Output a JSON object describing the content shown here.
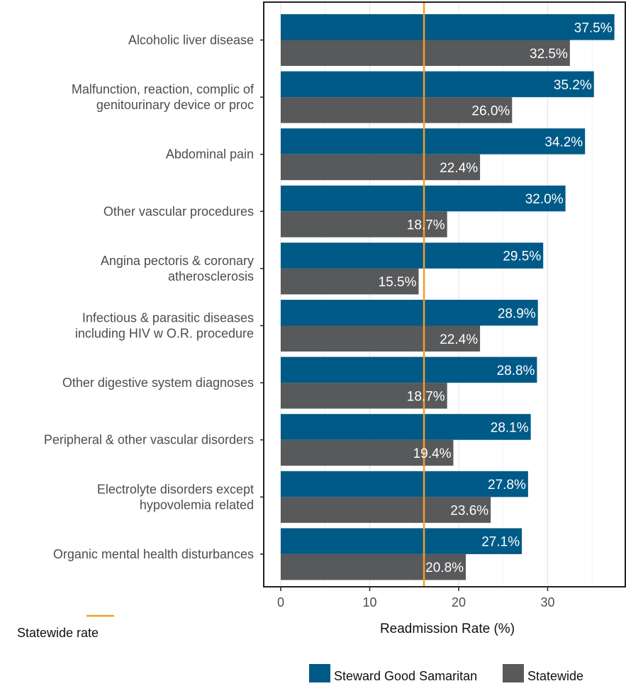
{
  "chart_data": {
    "type": "bar",
    "orientation": "horizontal",
    "xlabel": "Readmission Rate (%)",
    "ylabel": "",
    "xlim": [
      0,
      38.7
    ],
    "x_ticks": [
      0,
      10,
      20,
      30
    ],
    "grid": "vertical",
    "legend_placement": "bottom-right",
    "reference_line": {
      "label": "Statewide rate",
      "value": 16.1,
      "color": "#F39C2B"
    },
    "categories": [
      "Alcoholic liver disease",
      "Malfunction, reaction, complic of\ngenitourinary device or proc",
      "Abdominal pain",
      "Other vascular procedures",
      "Angina pectoris & coronary\natherosclerosis",
      "Infectious & parasitic diseases\nincluding HIV w O.R. procedure",
      "Other digestive system diagnoses",
      "Peripheral & other vascular disorders",
      "Electrolyte disorders except\nhypovolemia related",
      "Organic mental health disturbances"
    ],
    "series": [
      {
        "name": "Steward Good Samaritan",
        "color": "#005A87",
        "values": [
          37.5,
          35.2,
          34.2,
          32.0,
          29.5,
          28.9,
          28.8,
          28.1,
          27.8,
          27.1
        ],
        "labels": [
          "37.5%",
          "35.2%",
          "34.2%",
          "32.0%",
          "29.5%",
          "28.9%",
          "28.8%",
          "28.1%",
          "27.8%",
          "27.1%"
        ]
      },
      {
        "name": "Statewide",
        "color": "#58595B",
        "values": [
          32.5,
          26.0,
          22.4,
          18.7,
          15.5,
          22.4,
          18.7,
          19.4,
          23.6,
          20.8
        ],
        "labels": [
          "32.5%",
          "26.0%",
          "22.4%",
          "18.7%",
          "15.5%",
          "22.4%",
          "18.7%",
          "19.4%",
          "23.6%",
          "20.8%"
        ]
      }
    ]
  }
}
